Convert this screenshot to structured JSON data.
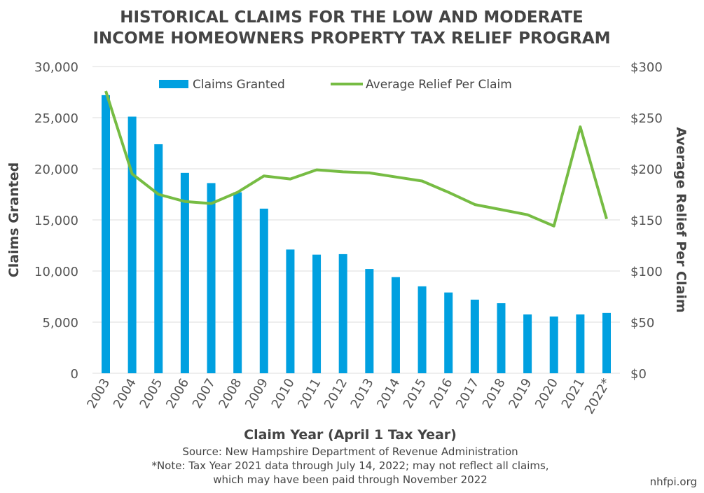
{
  "chart_data": {
    "type": "bar+line",
    "title_line1": "HISTORICAL CLAIMS FOR THE LOW AND MODERATE",
    "title_line2": "INCOME HOMEOWNERS PROPERTY TAX RELIEF PROGRAM",
    "xlabel": "Claim Year (April 1 Tax Year)",
    "ylabel": "Claims Granted",
    "y2label": "Average Relief Per Claim",
    "categories": [
      "2003",
      "2004",
      "2005",
      "2006",
      "2007",
      "2008",
      "2009",
      "2010",
      "2011",
      "2012",
      "2013",
      "2014",
      "2015",
      "2016",
      "2017",
      "2018",
      "2019",
      "2020",
      "2021",
      "2022*"
    ],
    "ylim": [
      0,
      30000
    ],
    "y2lim": [
      0,
      300
    ],
    "yticks": [
      "0",
      "5,000",
      "10,000",
      "15,000",
      "20,000",
      "25,000",
      "30,000"
    ],
    "y2ticks": [
      "$0",
      "$50",
      "$100",
      "$150",
      "$200",
      "$250",
      "$300"
    ],
    "grid": true,
    "legend_position": "top",
    "series": [
      {
        "name": "Claims Granted",
        "type": "bar",
        "axis": "left",
        "color": "#00a0e0",
        "values": [
          27200,
          25100,
          22400,
          19600,
          18600,
          17700,
          16100,
          12100,
          11600,
          11650,
          10200,
          9400,
          8500,
          7900,
          7200,
          6850,
          5750,
          5550,
          5750,
          5900
        ]
      },
      {
        "name": "Average Relief Per Claim",
        "type": "line",
        "axis": "right",
        "color": "#76bc43",
        "values": [
          276,
          195,
          175,
          168,
          166,
          177,
          193,
          190,
          199,
          197,
          196,
          192,
          188,
          177,
          165,
          160,
          155,
          144,
          241,
          151
        ]
      }
    ],
    "source": "Source: New Hampshire Department of Revenue Administration",
    "note_line1": "*Note: Tax Year 2021 data through July 14, 2022; may not reflect all claims,",
    "note_line2": "which may have been paid through November 2022",
    "credit": "nhfpi.org"
  }
}
